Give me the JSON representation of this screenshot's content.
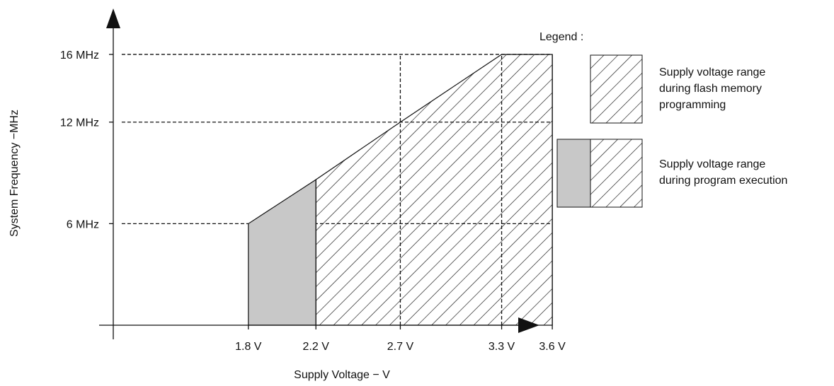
{
  "chart_data": {
    "type": "area",
    "title": "",
    "xlabel": "Supply Voltage − V",
    "ylabel": "System Frequency −MHz",
    "x_ticks": [
      {
        "value": 1.8,
        "label": "1.8 V"
      },
      {
        "value": 2.2,
        "label": "2.2 V"
      },
      {
        "value": 2.7,
        "label": "2.7 V"
      },
      {
        "value": 3.3,
        "label": "3.3 V"
      },
      {
        "value": 3.6,
        "label": "3.6 V"
      }
    ],
    "y_ticks": [
      {
        "value": 6,
        "label": "6 MHz"
      },
      {
        "value": 12,
        "label": "12 MHz"
      },
      {
        "value": 16,
        "label": "16 MHz"
      }
    ],
    "xlim": [
      1.0,
      4.0
    ],
    "ylim": [
      0,
      19
    ],
    "gridlines": "dashed at tick values",
    "series": [
      {
        "name": "Supply voltage range during program execution",
        "fill": "gray",
        "points": [
          [
            1.8,
            0
          ],
          [
            1.8,
            6
          ],
          [
            2.2,
            8.6
          ],
          [
            2.2,
            0
          ]
        ]
      },
      {
        "name": "Supply voltage range during flash memory programming",
        "fill": "hatched",
        "points": [
          [
            2.2,
            0
          ],
          [
            2.2,
            8.6
          ],
          [
            2.7,
            12
          ],
          [
            3.3,
            16
          ],
          [
            3.6,
            16
          ],
          [
            3.6,
            0
          ]
        ]
      }
    ],
    "legend": {
      "title": "Legend :",
      "position": "right",
      "entries": [
        {
          "lines": [
            "Supply voltage range",
            "during flash memory",
            "programming"
          ],
          "swatch": "hatched"
        },
        {
          "lines": [
            "Supply voltage range",
            "during program execution"
          ],
          "swatch": "gray+hatched"
        }
      ]
    }
  },
  "colors": {
    "gray_fill": "#c8c8c8",
    "line": "#111111",
    "hatch": "#111111",
    "background": "#ffffff"
  }
}
